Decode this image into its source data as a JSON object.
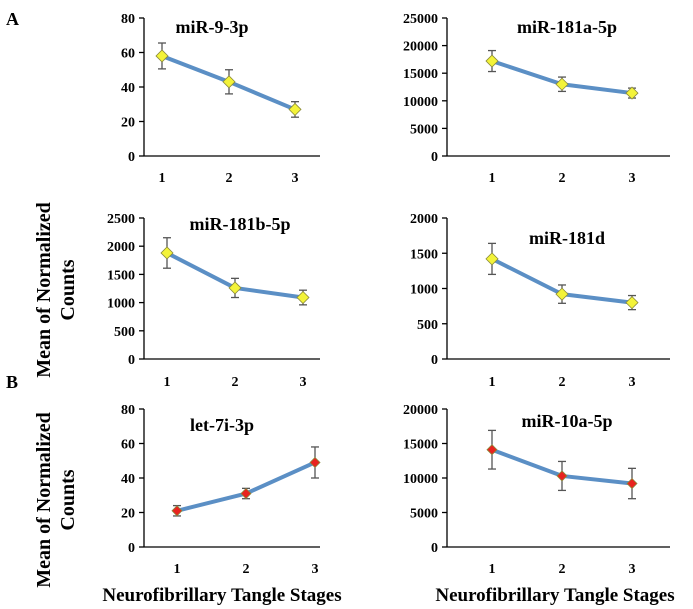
{
  "section_labels": [
    "A",
    "B"
  ],
  "y_axis_label": "Mean of Normalized Counts",
  "x_axis_label": "Neurofibrillary Tangle Stages",
  "colors": {
    "line": "#5b8fc5",
    "yellow_marker": "#f3f339",
    "red_marker": "#e8231f"
  },
  "chart_data": [
    {
      "type": "line",
      "title": "miR-9-3p",
      "categories": [
        "1",
        "2",
        "3"
      ],
      "values": [
        58,
        43,
        27
      ],
      "errors": [
        7.5,
        7,
        4.5
      ],
      "ylim": [
        0,
        80
      ],
      "yticks": [
        0,
        20,
        40,
        60,
        80
      ],
      "marker": "yellow"
    },
    {
      "type": "line",
      "title": "miR-181a-5p",
      "categories": [
        "1",
        "2",
        "3"
      ],
      "values": [
        17200,
        13000,
        11400
      ],
      "errors": [
        1900,
        1300,
        900
      ],
      "ylim": [
        0,
        25000
      ],
      "yticks": [
        0,
        5000,
        10000,
        15000,
        20000,
        25000
      ],
      "marker": "yellow"
    },
    {
      "type": "line",
      "title": "miR-181b-5p",
      "categories": [
        "1",
        "2",
        "3"
      ],
      "values": [
        1880,
        1260,
        1090
      ],
      "errors": [
        270,
        170,
        130
      ],
      "ylim": [
        0,
        2500
      ],
      "yticks": [
        0,
        500,
        1000,
        1500,
        2000,
        2500
      ],
      "marker": "yellow"
    },
    {
      "type": "line",
      "title": "miR-181d",
      "categories": [
        "1",
        "2",
        "3"
      ],
      "values": [
        1420,
        920,
        800
      ],
      "errors": [
        220,
        130,
        100
      ],
      "ylim": [
        0,
        2000
      ],
      "yticks": [
        0,
        500,
        1000,
        1500,
        2000
      ],
      "marker": "yellow"
    },
    {
      "type": "line",
      "title": "let-7i-3p",
      "categories": [
        "1",
        "2",
        "3"
      ],
      "values": [
        21,
        31,
        49
      ],
      "errors": [
        3,
        3,
        9
      ],
      "ylim": [
        0,
        80
      ],
      "yticks": [
        0,
        20,
        40,
        60,
        80
      ],
      "marker": "red"
    },
    {
      "type": "line",
      "title": "miR-10a-5p",
      "categories": [
        "1",
        "2",
        "3"
      ],
      "values": [
        14100,
        10300,
        9200
      ],
      "errors": [
        2800,
        2100,
        2200
      ],
      "ylim": [
        0,
        20000
      ],
      "yticks": [
        0,
        5000,
        10000,
        15000,
        20000
      ],
      "marker": "red"
    }
  ]
}
